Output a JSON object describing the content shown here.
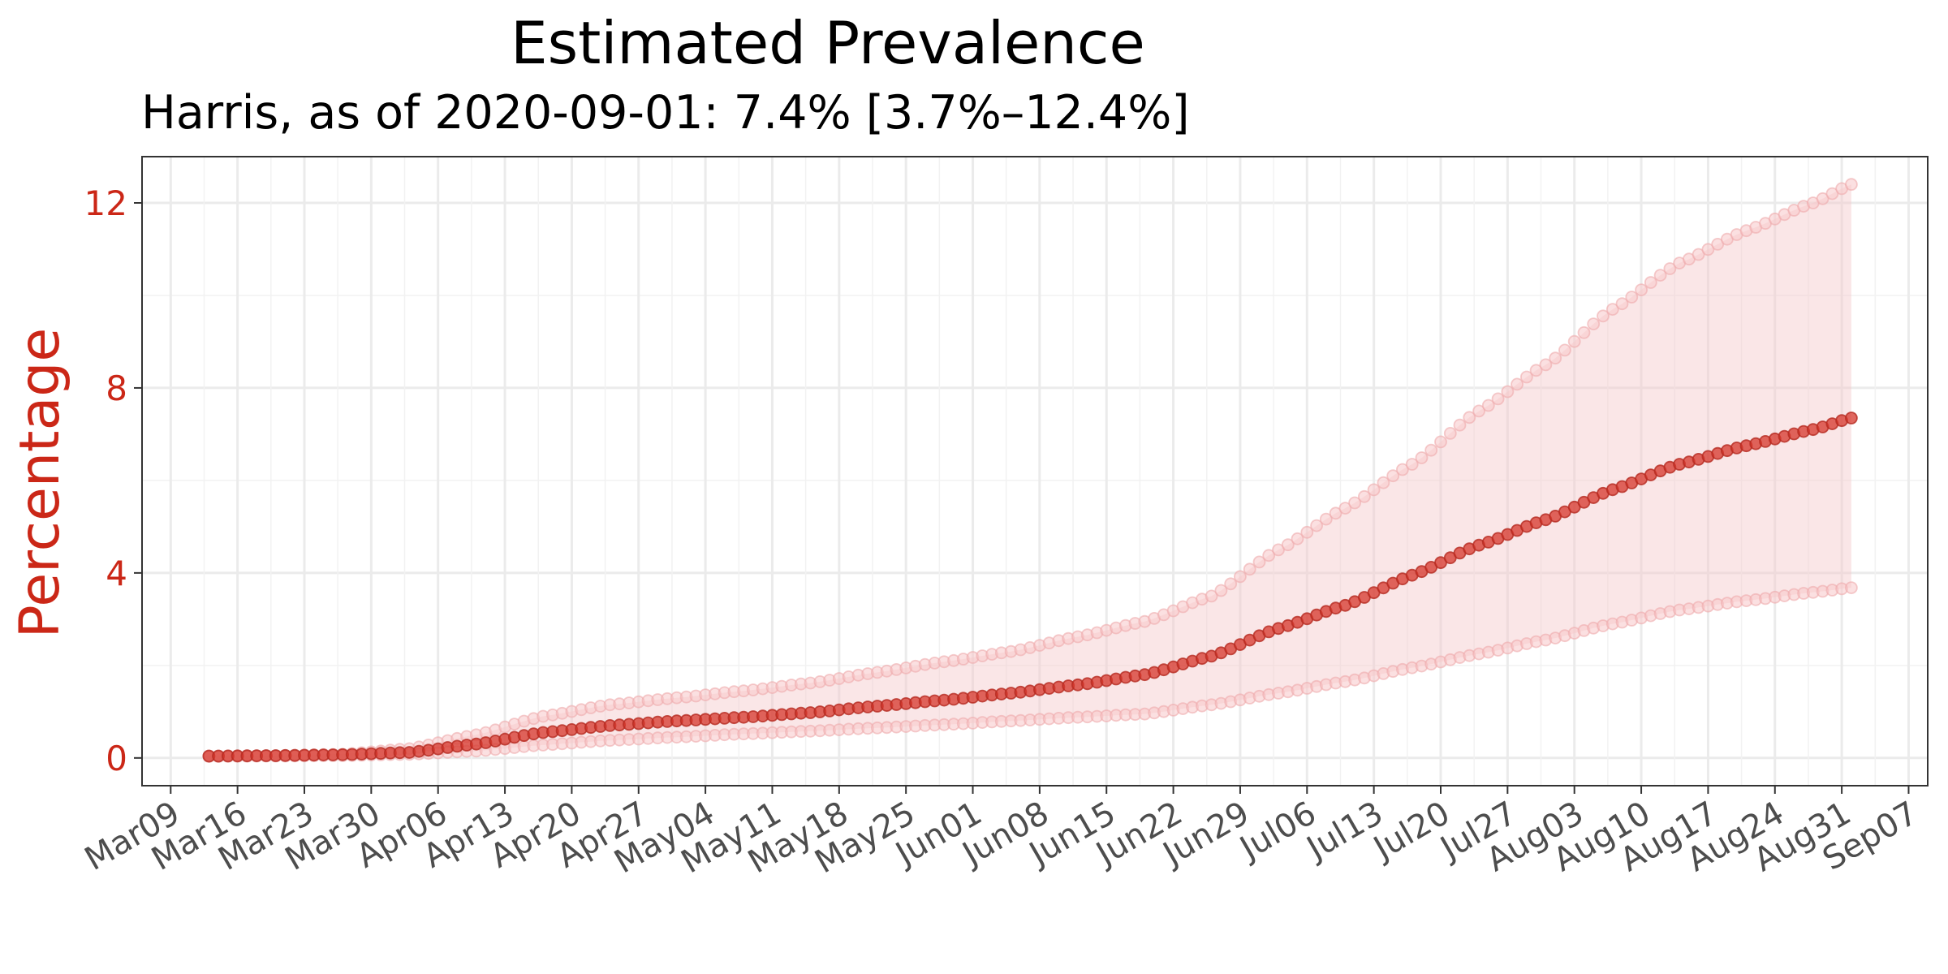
{
  "chart_data": {
    "type": "line",
    "title": "Estimated Prevalence",
    "subtitle": "Harris, as of 2020-09-01:  7.4% [3.7%–12.4%]",
    "xlabel": "",
    "ylabel": "Percentage",
    "x_start_date": "2020-03-09",
    "x_end_date": "2020-09-07",
    "data_start_date": "2020-03-13",
    "data_end_date": "2020-09-01",
    "xlim": [
      "2020-03-06",
      "2020-09-09"
    ],
    "ylim": [
      -0.6,
      13
    ],
    "y_ticks": [
      0,
      4,
      8,
      12
    ],
    "x_tick_labels": [
      "Mar09",
      "Mar16",
      "Mar23",
      "Mar30",
      "Apr06",
      "Apr13",
      "Apr20",
      "Apr27",
      "May04",
      "May11",
      "May18",
      "May25",
      "Jun01",
      "Jun08",
      "Jun15",
      "Jun22",
      "Jun29",
      "Jul06",
      "Jul13",
      "Jul20",
      "Jul27",
      "Aug03",
      "Aug10",
      "Aug17",
      "Aug24",
      "Aug31",
      "Sep07"
    ],
    "grid": true,
    "colors": {
      "line": "#d6362b",
      "band": "#f4c7c9",
      "text_accent": "#cb2717",
      "tick_text": "#4d4d4d"
    },
    "series": [
      {
        "values": [
          {
            "x": "2020-03-13",
            "y": 0.04
          },
          {
            "x": "2020-03-20",
            "y": 0.05
          },
          {
            "x": "2020-03-27",
            "y": 0.07
          },
          {
            "x": "2020-04-03",
            "y": 0.12
          },
          {
            "x": "2020-04-10",
            "y": 0.3
          },
          {
            "x": "2020-04-17",
            "y": 0.55
          },
          {
            "x": "2020-04-24",
            "y": 0.7
          },
          {
            "x": "2020-05-01",
            "y": 0.8
          },
          {
            "x": "2020-05-08",
            "y": 0.88
          },
          {
            "x": "2020-05-15",
            "y": 0.98
          },
          {
            "x": "2020-05-22",
            "y": 1.12
          },
          {
            "x": "2020-05-29",
            "y": 1.25
          },
          {
            "x": "2020-06-05",
            "y": 1.4
          },
          {
            "x": "2020-06-12",
            "y": 1.58
          },
          {
            "x": "2020-06-19",
            "y": 1.8
          },
          {
            "x": "2020-06-26",
            "y": 2.2
          },
          {
            "x": "2020-07-03",
            "y": 2.8
          },
          {
            "x": "2020-07-10",
            "y": 3.3
          },
          {
            "x": "2020-07-17",
            "y": 3.95
          },
          {
            "x": "2020-07-24",
            "y": 4.6
          },
          {
            "x": "2020-07-31",
            "y": 5.15
          },
          {
            "x": "2020-08-07",
            "y": 5.8
          },
          {
            "x": "2020-08-14",
            "y": 6.35
          },
          {
            "x": "2020-08-21",
            "y": 6.75
          },
          {
            "x": "2020-08-28",
            "y": 7.1
          },
          {
            "x": "2020-09-01",
            "y": 7.35
          }
        ]
      },
      {
        "values": [
          {
            "x": "2020-03-13",
            "y": 0.04
          },
          {
            "x": "2020-03-20",
            "y": 0.05
          },
          {
            "x": "2020-03-27",
            "y": 0.08
          },
          {
            "x": "2020-04-03",
            "y": 0.2
          },
          {
            "x": "2020-04-10",
            "y": 0.5
          },
          {
            "x": "2020-04-17",
            "y": 0.9
          },
          {
            "x": "2020-04-24",
            "y": 1.15
          },
          {
            "x": "2020-05-01",
            "y": 1.3
          },
          {
            "x": "2020-05-08",
            "y": 1.45
          },
          {
            "x": "2020-05-15",
            "y": 1.62
          },
          {
            "x": "2020-05-22",
            "y": 1.85
          },
          {
            "x": "2020-05-29",
            "y": 2.08
          },
          {
            "x": "2020-06-05",
            "y": 2.3
          },
          {
            "x": "2020-06-12",
            "y": 2.62
          },
          {
            "x": "2020-06-19",
            "y": 2.95
          },
          {
            "x": "2020-06-26",
            "y": 3.5
          },
          {
            "x": "2020-07-03",
            "y": 4.5
          },
          {
            "x": "2020-07-10",
            "y": 5.4
          },
          {
            "x": "2020-07-17",
            "y": 6.35
          },
          {
            "x": "2020-07-24",
            "y": 7.5
          },
          {
            "x": "2020-07-31",
            "y": 8.5
          },
          {
            "x": "2020-08-07",
            "y": 9.7
          },
          {
            "x": "2020-08-14",
            "y": 10.7
          },
          {
            "x": "2020-08-21",
            "y": 11.4
          },
          {
            "x": "2020-08-28",
            "y": 12.0
          },
          {
            "x": "2020-09-01",
            "y": 12.4
          }
        ]
      },
      {
        "values": [
          {
            "x": "2020-03-13",
            "y": 0.03
          },
          {
            "x": "2020-03-20",
            "y": 0.04
          },
          {
            "x": "2020-03-27",
            "y": 0.05
          },
          {
            "x": "2020-04-03",
            "y": 0.08
          },
          {
            "x": "2020-04-10",
            "y": 0.15
          },
          {
            "x": "2020-04-17",
            "y": 0.28
          },
          {
            "x": "2020-04-24",
            "y": 0.38
          },
          {
            "x": "2020-05-01",
            "y": 0.45
          },
          {
            "x": "2020-05-08",
            "y": 0.52
          },
          {
            "x": "2020-05-15",
            "y": 0.58
          },
          {
            "x": "2020-05-22",
            "y": 0.65
          },
          {
            "x": "2020-05-29",
            "y": 0.72
          },
          {
            "x": "2020-06-05",
            "y": 0.8
          },
          {
            "x": "2020-06-12",
            "y": 0.88
          },
          {
            "x": "2020-06-19",
            "y": 0.95
          },
          {
            "x": "2020-06-26",
            "y": 1.15
          },
          {
            "x": "2020-07-03",
            "y": 1.4
          },
          {
            "x": "2020-07-10",
            "y": 1.65
          },
          {
            "x": "2020-07-17",
            "y": 1.95
          },
          {
            "x": "2020-07-24",
            "y": 2.25
          },
          {
            "x": "2020-07-31",
            "y": 2.55
          },
          {
            "x": "2020-08-07",
            "y": 2.9
          },
          {
            "x": "2020-08-14",
            "y": 3.2
          },
          {
            "x": "2020-08-21",
            "y": 3.4
          },
          {
            "x": "2020-08-28",
            "y": 3.58
          },
          {
            "x": "2020-09-01",
            "y": 3.68
          }
        ]
      }
    ]
  }
}
